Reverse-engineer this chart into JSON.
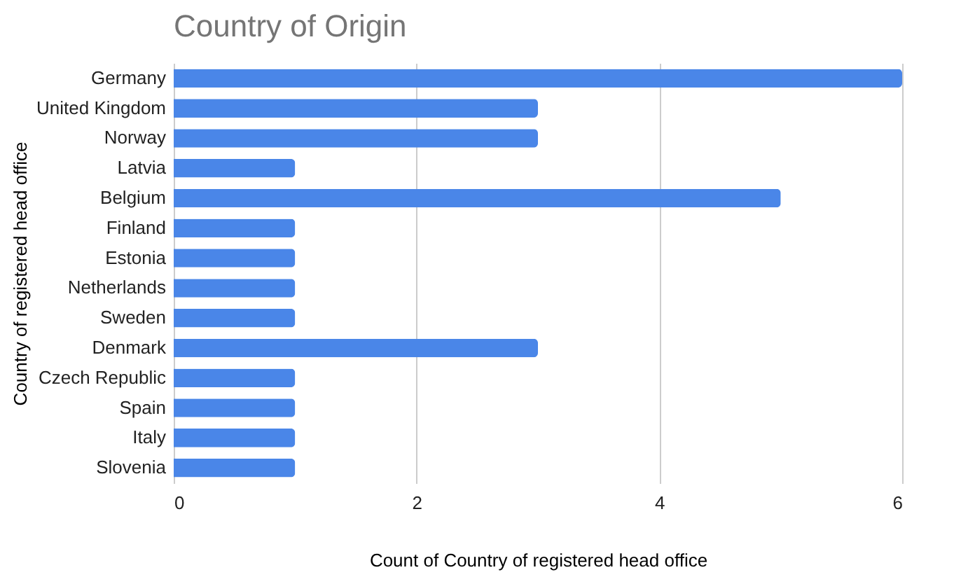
{
  "chart_data": {
    "type": "bar",
    "orientation": "horizontal",
    "title": "Country of Origin",
    "xlabel": "Count of Country of registered head office",
    "ylabel": "Country of registered head office",
    "categories": [
      "Germany",
      "United Kingdom",
      "Norway",
      "Latvia",
      "Belgium",
      "Finland",
      "Estonia",
      "Netherlands",
      "Sweden",
      "Denmark",
      "Czech Republic",
      "Spain",
      "Italy",
      "Slovenia"
    ],
    "values": [
      6,
      3,
      3,
      1,
      5,
      1,
      1,
      1,
      1,
      3,
      1,
      1,
      1,
      1
    ],
    "color": "#4a86e8",
    "xlim": [
      0,
      6
    ],
    "xticks": [
      0,
      2,
      4,
      6
    ],
    "grid": "x"
  }
}
